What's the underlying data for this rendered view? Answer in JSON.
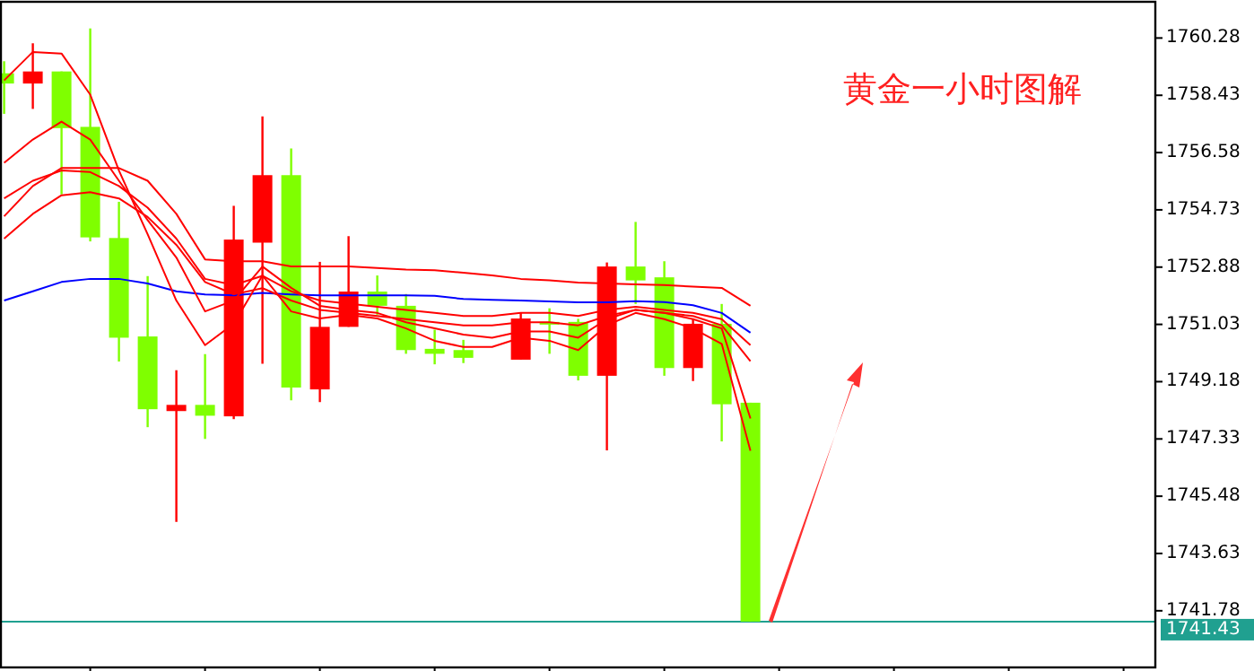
{
  "chart_data": {
    "type": "candlestick",
    "title": "黄金一小时图解",
    "categories": [
      null,
      null,
      null,
      null,
      null,
      null,
      null,
      null,
      null,
      null,
      null,
      null,
      null,
      null,
      null,
      null,
      null,
      null,
      null,
      null,
      null,
      null,
      null,
      null,
      null,
      null,
      null
    ],
    "ohlc": [
      [
        1759.14,
        1759.53,
        1757.83,
        1758.81
      ],
      [
        1758.81,
        1760.11,
        1757.99,
        1759.2
      ],
      [
        1759.2,
        1759.2,
        1755.23,
        1757.37
      ],
      [
        1757.41,
        1760.59,
        1753.71,
        1753.84
      ],
      [
        1753.82,
        1754.99,
        1749.83,
        1750.6
      ],
      [
        1750.64,
        1752.59,
        1747.71,
        1748.29
      ],
      [
        1748.23,
        1749.55,
        1744.65,
        1748.43
      ],
      [
        1748.43,
        1750.07,
        1747.33,
        1748.08
      ],
      [
        1748.06,
        1754.86,
        1747.97,
        1753.77
      ],
      [
        1753.67,
        1757.75,
        1749.76,
        1755.85
      ],
      [
        1755.85,
        1756.71,
        1748.58,
        1748.99
      ],
      [
        1748.93,
        1753.05,
        1748.52,
        1750.95
      ],
      [
        1750.95,
        1753.88,
        1750.95,
        1752.09
      ],
      [
        1752.09,
        1752.61,
        1751.34,
        1751.63
      ],
      [
        1751.63,
        1752.01,
        1750.08,
        1750.2
      ],
      [
        1750.24,
        1750.86,
        1749.74,
        1750.08
      ],
      [
        1750.2,
        1750.53,
        1749.78,
        1749.95
      ],
      null,
      [
        1749.89,
        1751.4,
        1749.89,
        1751.22
      ],
      [
        1751.11,
        1751.55,
        1750.08,
        1751.05
      ],
      [
        1751.11,
        1751.21,
        1749.22,
        1749.37
      ],
      [
        1749.37,
        1753.03,
        1746.96,
        1752.9
      ],
      [
        1752.9,
        1754.34,
        1751.69,
        1752.45
      ],
      [
        1752.55,
        1753.07,
        1749.37,
        1749.62
      ],
      [
        1749.62,
        1751.21,
        1749.2,
        1751.05
      ],
      [
        1751.05,
        1751.69,
        1747.25,
        1748.45
      ],
      [
        1748.5,
        1748.5,
        1741.43,
        1741.43
      ]
    ],
    "colors": [
      "#7fff00",
      "#ff0000",
      "#7fff00",
      "#7fff00",
      "#7fff00",
      "#7fff00",
      "#ff0000",
      "#7fff00",
      "#ff0000",
      "#ff0000",
      "#7fff00",
      "#ff0000",
      "#ff0000",
      "#7fff00",
      "#7fff00",
      "#7fff00",
      "#7fff00",
      null,
      "#ff0000",
      "#7fff00",
      "#7fff00",
      "#ff0000",
      "#7fff00",
      "#7fff00",
      "#ff0000",
      "#7fff00",
      "#7fff00"
    ],
    "series": [
      {
        "type": "line",
        "color": "#0000ff",
        "values": [
          1751.8,
          1752.1,
          1752.4,
          1752.5,
          1752.5,
          1752.35,
          1752.1,
          1752.0,
          1751.97,
          1752.05,
          1752.0,
          1751.97,
          1751.97,
          1751.97,
          1751.97,
          1751.95,
          1751.85,
          1751.82,
          1751.8,
          1751.77,
          1751.74,
          1751.74,
          1751.78,
          1751.75,
          1751.65,
          1751.4,
          1750.76
        ]
      },
      {
        "type": "line",
        "color": "#ff0000",
        "values": [
          1758.91,
          1759.83,
          1759.78,
          1758.45,
          1756.0,
          1753.94,
          1751.8,
          1750.36,
          1751.05,
          1752.61,
          1751.45,
          1751.22,
          1751.34,
          1751.22,
          1750.9,
          1750.5,
          1750.3,
          1750.3,
          1750.6,
          1750.5,
          1750.2,
          1751.0,
          1751.4,
          1751.2,
          1750.9,
          1750.4,
          1746.95
        ]
      },
      {
        "type": "line",
        "color": "#ff0000",
        "values": [
          1756.25,
          1757.0,
          1757.58,
          1757.0,
          1755.67,
          1754.4,
          1753.19,
          1751.45,
          1751.8,
          1752.9,
          1752.21,
          1751.63,
          1751.5,
          1751.4,
          1751.1,
          1750.9,
          1750.7,
          1750.6,
          1750.8,
          1750.8,
          1750.6,
          1751.2,
          1751.5,
          1751.4,
          1751.2,
          1750.9,
          1747.99
        ]
      },
      {
        "type": "line",
        "color": "#ff0000",
        "values": [
          1754.52,
          1755.5,
          1756.08,
          1756.08,
          1756.08,
          1755.67,
          1754.6,
          1753.13,
          1753.07,
          1753.07,
          1752.9,
          1752.9,
          1752.9,
          1752.85,
          1752.8,
          1752.78,
          1752.7,
          1752.61,
          1752.5,
          1752.45,
          1752.38,
          1752.35,
          1752.32,
          1752.3,
          1752.25,
          1752.21,
          1751.63
        ]
      },
      {
        "type": "line",
        "color": "#ff0000",
        "values": [
          1755.1,
          1755.67,
          1756.0,
          1755.95,
          1755.5,
          1754.8,
          1753.8,
          1752.5,
          1752.3,
          1752.6,
          1752.1,
          1751.8,
          1751.7,
          1751.6,
          1751.5,
          1751.4,
          1751.3,
          1751.3,
          1751.4,
          1751.4,
          1751.3,
          1751.5,
          1751.6,
          1751.5,
          1751.4,
          1751.2,
          1750.36
        ]
      },
      {
        "type": "line",
        "color": "#ff0000",
        "values": [
          1753.8,
          1754.6,
          1755.2,
          1755.3,
          1755.1,
          1754.5,
          1753.6,
          1752.4,
          1752.0,
          1752.2,
          1751.8,
          1751.5,
          1751.4,
          1751.3,
          1751.2,
          1751.1,
          1751.0,
          1751.0,
          1751.1,
          1751.1,
          1751.0,
          1751.3,
          1751.5,
          1751.4,
          1751.3,
          1751.0,
          1749.84
        ]
      }
    ],
    "ylim": [
      1739.95,
      1761.45
    ],
    "yticks": [
      {
        "value": 1760.28,
        "label": "1760.28"
      },
      {
        "value": 1758.43,
        "label": "1758.43"
      },
      {
        "value": 1756.58,
        "label": "1756.58"
      },
      {
        "value": 1754.73,
        "label": "1754.73"
      },
      {
        "value": 1752.88,
        "label": "1752.88"
      },
      {
        "value": 1751.03,
        "label": "1751.03"
      },
      {
        "value": 1749.18,
        "label": "1749.18"
      },
      {
        "value": 1747.33,
        "label": "1747.33"
      },
      {
        "value": 1745.48,
        "label": "1745.48"
      },
      {
        "value": 1743.63,
        "label": "1743.63"
      },
      {
        "value": 1741.78,
        "label": "1741.78"
      }
    ],
    "tick_labels": "y",
    "ref_lines": [
      {
        "axis": "y",
        "value": 1741.43,
        "label": "1741.43",
        "color": "#20a090"
      }
    ]
  }
}
